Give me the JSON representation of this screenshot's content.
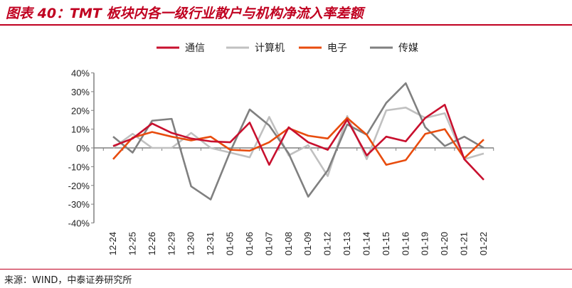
{
  "title": "图表 40：TMT 板块内各一级行业散户与机构净流入率差额",
  "source": "来源：WIND，中泰证券研究所",
  "chart_data": {
    "type": "line",
    "title": "图表 40：TMT 板块内各一级行业散户与机构净流入率差额",
    "xlabel": "",
    "ylabel": "",
    "ylim": [
      -40,
      40
    ],
    "yticks": [
      40,
      30,
      20,
      10,
      0,
      -10,
      -20,
      -30,
      -40
    ],
    "ytick_labels": [
      "40%",
      "30%",
      "20%",
      "10%",
      "0%",
      "-10%",
      "-20%",
      "-30%",
      "-40%"
    ],
    "legend_position": "top",
    "grid": false,
    "categories": [
      "12-24",
      "12-25",
      "12-26",
      "12-29",
      "12-30",
      "12-31",
      "01-05",
      "01-06",
      "01-07",
      "01-08",
      "01-09",
      "01-12",
      "01-13",
      "01-14",
      "01-15",
      "01-16",
      "01-19",
      "01-20",
      "01-21",
      "01-22"
    ],
    "series": [
      {
        "name": "通信",
        "color": "#c8102e",
        "values": [
          1,
          5,
          13,
          8,
          5,
          3.5,
          3,
          13.5,
          -9,
          11,
          3,
          -1,
          15,
          -4,
          6,
          3.5,
          16,
          23,
          -6,
          -17
        ]
      },
      {
        "name": "计算机",
        "color": "#c0c0c0",
        "values": [
          0,
          7.5,
          0,
          0,
          8,
          0,
          -2.5,
          -5,
          16.5,
          -4,
          1.5,
          -15,
          17,
          -6,
          20,
          21.5,
          16,
          18.5,
          -6,
          -3
        ]
      },
      {
        "name": "电子",
        "color": "#e84c0e",
        "values": [
          -6,
          5.5,
          8.5,
          6,
          4,
          6,
          -1,
          -1.5,
          3,
          10.5,
          6.5,
          5,
          16,
          7,
          -9,
          -6.5,
          7.5,
          10,
          -5.5,
          4.5
        ]
      },
      {
        "name": "传媒",
        "color": "#808080",
        "values": [
          6,
          -2.5,
          14.5,
          15.5,
          -20.5,
          -27.5,
          -2,
          20.5,
          12,
          -3,
          -26,
          -12,
          12.5,
          7,
          24,
          34.5,
          11,
          1,
          6,
          0
        ]
      }
    ]
  }
}
